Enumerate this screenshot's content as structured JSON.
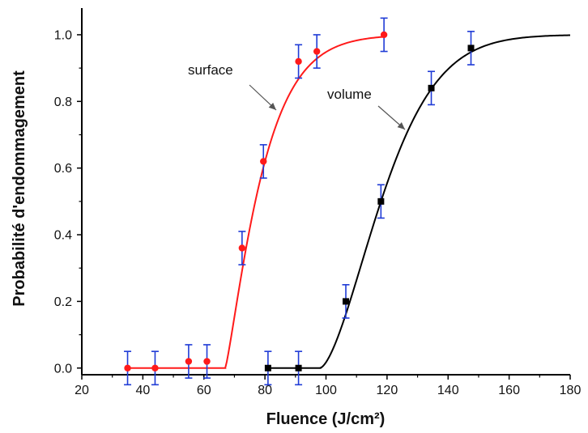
{
  "chart_data": {
    "type": "scatter",
    "xlabel": "Fluence (J/cm²)",
    "ylabel": "Probabilité d'endommagement",
    "xlim": [
      20,
      180
    ],
    "ylim": [
      -0.02,
      1.08
    ],
    "xticks": [
      "20",
      "40",
      "60",
      "80",
      "100",
      "120",
      "140",
      "160",
      "180"
    ],
    "yticks": [
      "0.0",
      "0.2",
      "0.4",
      "0.6",
      "0.8",
      "1.0"
    ],
    "grid": false,
    "errorbar_color": "#1f3bd6",
    "series": [
      {
        "name": "surface",
        "color": "#ff1a1a",
        "marker": "circle",
        "points": [
          {
            "x": 35,
            "y": 0.0,
            "err": 0.05
          },
          {
            "x": 44,
            "y": 0.0,
            "err": 0.05
          },
          {
            "x": 55,
            "y": 0.02,
            "err": 0.05
          },
          {
            "x": 61,
            "y": 0.02,
            "err": 0.05
          },
          {
            "x": 72.5,
            "y": 0.36,
            "err": 0.05
          },
          {
            "x": 79.5,
            "y": 0.62,
            "err": 0.05
          },
          {
            "x": 91,
            "y": 0.92,
            "err": 0.05
          },
          {
            "x": 97,
            "y": 0.95,
            "err": 0.05
          },
          {
            "x": 119,
            "y": 1.0,
            "err": 0.05
          }
        ],
        "fit": {
          "x0": 67,
          "x_end": 119,
          "level_end": 0.97
        }
      },
      {
        "name": "volume",
        "color": "#000000",
        "marker": "square",
        "points": [
          {
            "x": 81,
            "y": 0.0,
            "err": 0.05
          },
          {
            "x": 91,
            "y": 0.0,
            "err": 0.05
          },
          {
            "x": 106.5,
            "y": 0.2,
            "err": 0.05
          },
          {
            "x": 118,
            "y": 0.5,
            "err": 0.05
          },
          {
            "x": 134.5,
            "y": 0.84,
            "err": 0.05
          },
          {
            "x": 147.5,
            "y": 0.96,
            "err": 0.05
          }
        ],
        "fit": {
          "x0": 98,
          "x_end": 180,
          "level_end": 0.995
        }
      }
    ],
    "annotations": [
      {
        "text": "surface",
        "series": "surface"
      },
      {
        "text": "volume",
        "series": "volume"
      }
    ]
  }
}
